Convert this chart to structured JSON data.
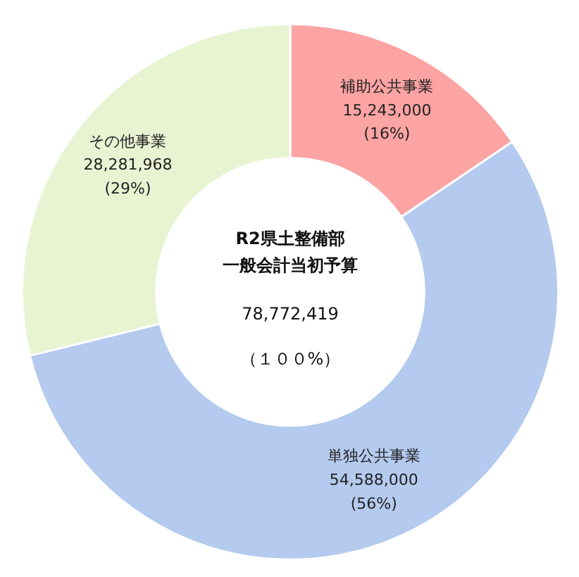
{
  "chart_data": {
    "type": "donut",
    "categories": [
      "補助公共事業",
      "単独公共事業",
      "その他事業"
    ],
    "values": [
      15243000,
      54588000,
      28281968
    ],
    "colors": [
      "#fca3a3",
      "#b4caee",
      "#e8f3d2"
    ],
    "value_labels": [
      "15,243,000\n(16%)",
      "54,588,000\n(56%)",
      "28,281,968\n(29%)"
    ],
    "annotations": [
      "R2県土整備部",
      "一般会計当初予算",
      "78,772,419",
      "（１００%）"
    ],
    "legend": false
  }
}
